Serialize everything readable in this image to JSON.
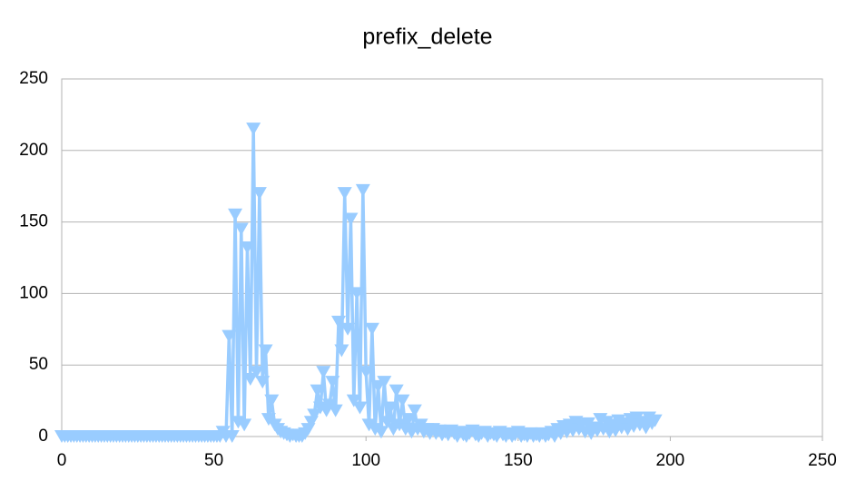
{
  "chart_data": {
    "type": "line",
    "title": "prefix_delete",
    "color": "#99ccff",
    "marker": "triangle-down",
    "grid": true,
    "xlim": [
      0,
      250
    ],
    "xticks": [
      0,
      50,
      100,
      150,
      200,
      250
    ],
    "ylim": [
      0,
      250
    ],
    "yticks": [
      0,
      50,
      100,
      150,
      200,
      250
    ],
    "x": [
      0,
      1,
      2,
      3,
      4,
      5,
      6,
      7,
      8,
      9,
      10,
      11,
      12,
      13,
      14,
      15,
      16,
      17,
      18,
      19,
      20,
      21,
      22,
      23,
      24,
      25,
      26,
      27,
      28,
      29,
      30,
      31,
      32,
      33,
      34,
      35,
      36,
      37,
      38,
      39,
      40,
      41,
      42,
      43,
      44,
      45,
      46,
      47,
      48,
      49,
      50,
      51,
      52,
      53,
      54,
      55,
      56,
      57,
      58,
      59,
      60,
      61,
      62,
      63,
      64,
      65,
      66,
      67,
      68,
      69,
      70,
      71,
      72,
      73,
      74,
      75,
      76,
      77,
      78,
      79,
      80,
      81,
      82,
      83,
      84,
      85,
      86,
      87,
      88,
      89,
      90,
      91,
      92,
      93,
      94,
      95,
      96,
      97,
      98,
      99,
      100,
      101,
      102,
      103,
      104,
      105,
      106,
      107,
      108,
      109,
      110,
      111,
      112,
      113,
      114,
      115,
      116,
      117,
      118,
      119,
      120,
      121,
      122,
      123,
      124,
      125,
      126,
      127,
      128,
      129,
      130,
      131,
      132,
      133,
      134,
      135,
      136,
      137,
      138,
      139,
      140,
      141,
      142,
      143,
      144,
      145,
      146,
      147,
      148,
      149,
      150,
      151,
      152,
      153,
      154,
      155,
      156,
      157,
      158,
      159,
      160,
      161,
      162,
      163,
      164,
      165,
      166,
      167,
      168,
      169,
      170,
      171,
      172,
      173,
      174,
      175,
      176,
      177,
      178,
      179,
      180,
      181,
      182,
      183,
      184,
      185,
      186,
      187,
      188,
      189,
      190,
      191,
      192,
      193,
      194,
      195
    ],
    "values": [
      0,
      0,
      0,
      0,
      0,
      0,
      0,
      0,
      0,
      0,
      0,
      0,
      0,
      0,
      0,
      0,
      0,
      0,
      0,
      0,
      0,
      0,
      0,
      0,
      0,
      0,
      0,
      0,
      0,
      0,
      0,
      0,
      0,
      0,
      0,
      0,
      0,
      0,
      0,
      0,
      0,
      0,
      0,
      0,
      0,
      0,
      0,
      0,
      0,
      0,
      0,
      0,
      0,
      3,
      0,
      70,
      0,
      155,
      10,
      145,
      8,
      132,
      40,
      215,
      45,
      170,
      38,
      60,
      12,
      25,
      8,
      5,
      3,
      2,
      1,
      0,
      1,
      0,
      0,
      0,
      2,
      5,
      10,
      15,
      32,
      20,
      45,
      18,
      22,
      38,
      18,
      80,
      60,
      170,
      75,
      152,
      25,
      100,
      20,
      172,
      45,
      8,
      75,
      5,
      35,
      3,
      38,
      10,
      20,
      5,
      32,
      8,
      25,
      5,
      12,
      3,
      18,
      5,
      8,
      3,
      5,
      2,
      5,
      2,
      4,
      1,
      3,
      1,
      4,
      2,
      0,
      3,
      1,
      0,
      2,
      4,
      1,
      0,
      2,
      3,
      0,
      2,
      1,
      0,
      3,
      1,
      0,
      2,
      0,
      1,
      3,
      0,
      1,
      0,
      2,
      0,
      1,
      0,
      2,
      0,
      1,
      3,
      0,
      5,
      2,
      7,
      3,
      8,
      4,
      10,
      5,
      8,
      3,
      9,
      2,
      6,
      4,
      12,
      5,
      10,
      3,
      8,
      4,
      11,
      6,
      9,
      5,
      12,
      7,
      13,
      8,
      10,
      6,
      13,
      9,
      11
    ]
  }
}
